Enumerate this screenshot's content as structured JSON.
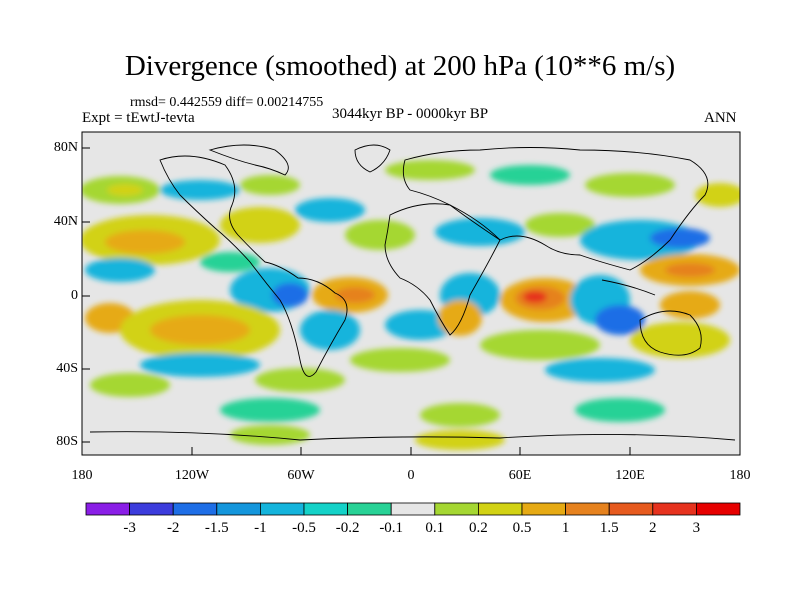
{
  "title": "Divergence (smoothed) at 200 hPa (10**6 m/s)",
  "stats": "rmsd= 0.442559 diff= 0.00214755",
  "expt": "Expt = tEwtJ-tevta",
  "period": "3044kyr BP - 0000kyr BP",
  "season": "ANN",
  "y_ticks": [
    "80N",
    "40N",
    "0",
    "40S",
    "80S"
  ],
  "x_ticks": [
    "180",
    "120W",
    "60W",
    "0",
    "60E",
    "120E",
    "180"
  ],
  "colorbar": {
    "labels": [
      "-3",
      "-2",
      "-1.5",
      "-1",
      "-0.5",
      "-0.2",
      "-0.1",
      "0.1",
      "0.2",
      "0.5",
      "1",
      "1.5",
      "2",
      "3"
    ],
    "colors": [
      "#8a1ee6",
      "#3c3cdc",
      "#1e6ee6",
      "#1496dc",
      "#14b4dc",
      "#14d2c8",
      "#28d296",
      "#e6e6e6",
      "#a5d732",
      "#d2d214",
      "#e6aa14",
      "#e6821e",
      "#e65a1e",
      "#e6321e",
      "#e60000"
    ]
  },
  "colors": {
    "neutral": "#e6e6e6",
    "coast": "#000000"
  }
}
